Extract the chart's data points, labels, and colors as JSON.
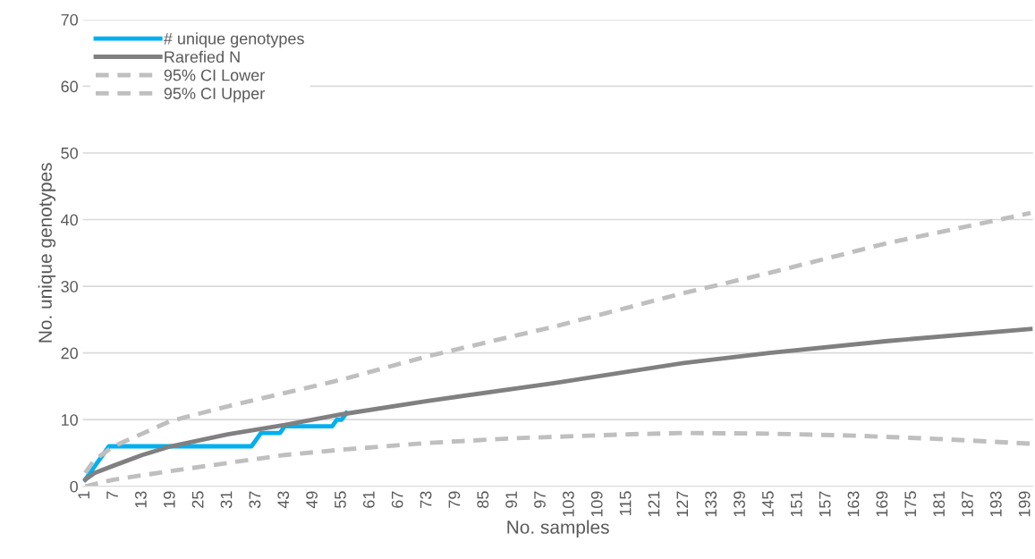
{
  "chart_data": {
    "type": "line",
    "xlabel": "No. samples",
    "ylabel": "No. unique genotypes",
    "xlim": [
      0.5,
      200.5
    ],
    "xticks": [
      1,
      7,
      13,
      19,
      25,
      31,
      37,
      43,
      49,
      55,
      61,
      67,
      73,
      79,
      85,
      91,
      97,
      103,
      109,
      115,
      121,
      127,
      133,
      139,
      145,
      151,
      157,
      163,
      169,
      175,
      181,
      187,
      193,
      199
    ],
    "ylim": [
      0,
      70
    ],
    "yticks": [
      0,
      10,
      20,
      30,
      40,
      50,
      60,
      70
    ],
    "grid": "y",
    "legend": "top left",
    "series": [
      {
        "name": "# unique genotypes",
        "color": "#00b0f0",
        "line_style": "solid",
        "x": [
          1,
          2,
          3,
          4,
          5,
          6,
          36,
          37,
          38,
          42,
          43,
          53,
          54,
          55,
          56
        ],
        "values": [
          1,
          2,
          3,
          4,
          5,
          6,
          6,
          7,
          8,
          8,
          9,
          9,
          10,
          10,
          11
        ]
      },
      {
        "name": "Rarefied N",
        "color": "#808080",
        "line_style": "solid",
        "x": [
          1,
          3,
          7,
          13,
          19,
          31,
          43,
          55,
          73,
          100,
          127,
          145,
          170,
          200
        ],
        "values": [
          1,
          2,
          3.1,
          4.7,
          6,
          7.8,
          9.2,
          10.8,
          12.8,
          15.5,
          18.5,
          20,
          21.8,
          23.6
        ]
      },
      {
        "name": "95% CI Lower",
        "color": "#bfbfbf",
        "line_style": "dashed",
        "x": [
          1,
          7,
          19,
          31,
          43,
          55,
          73,
          91,
          115,
          127,
          145,
          163,
          181,
          200
        ],
        "values": [
          0,
          1,
          2.3,
          3.5,
          4.7,
          5.5,
          6.5,
          7.2,
          7.8,
          8,
          7.9,
          7.6,
          7.1,
          6.4
        ]
      },
      {
        "name": "95% CI Upper",
        "color": "#bfbfbf",
        "line_style": "dashed",
        "x": [
          1,
          3,
          7,
          19,
          31,
          43,
          55,
          73,
          100,
          127,
          145,
          170,
          200
        ],
        "values": [
          2,
          4,
          6,
          9.8,
          12,
          14,
          16,
          19.5,
          24,
          29,
          32,
          36.5,
          41
        ]
      }
    ]
  }
}
